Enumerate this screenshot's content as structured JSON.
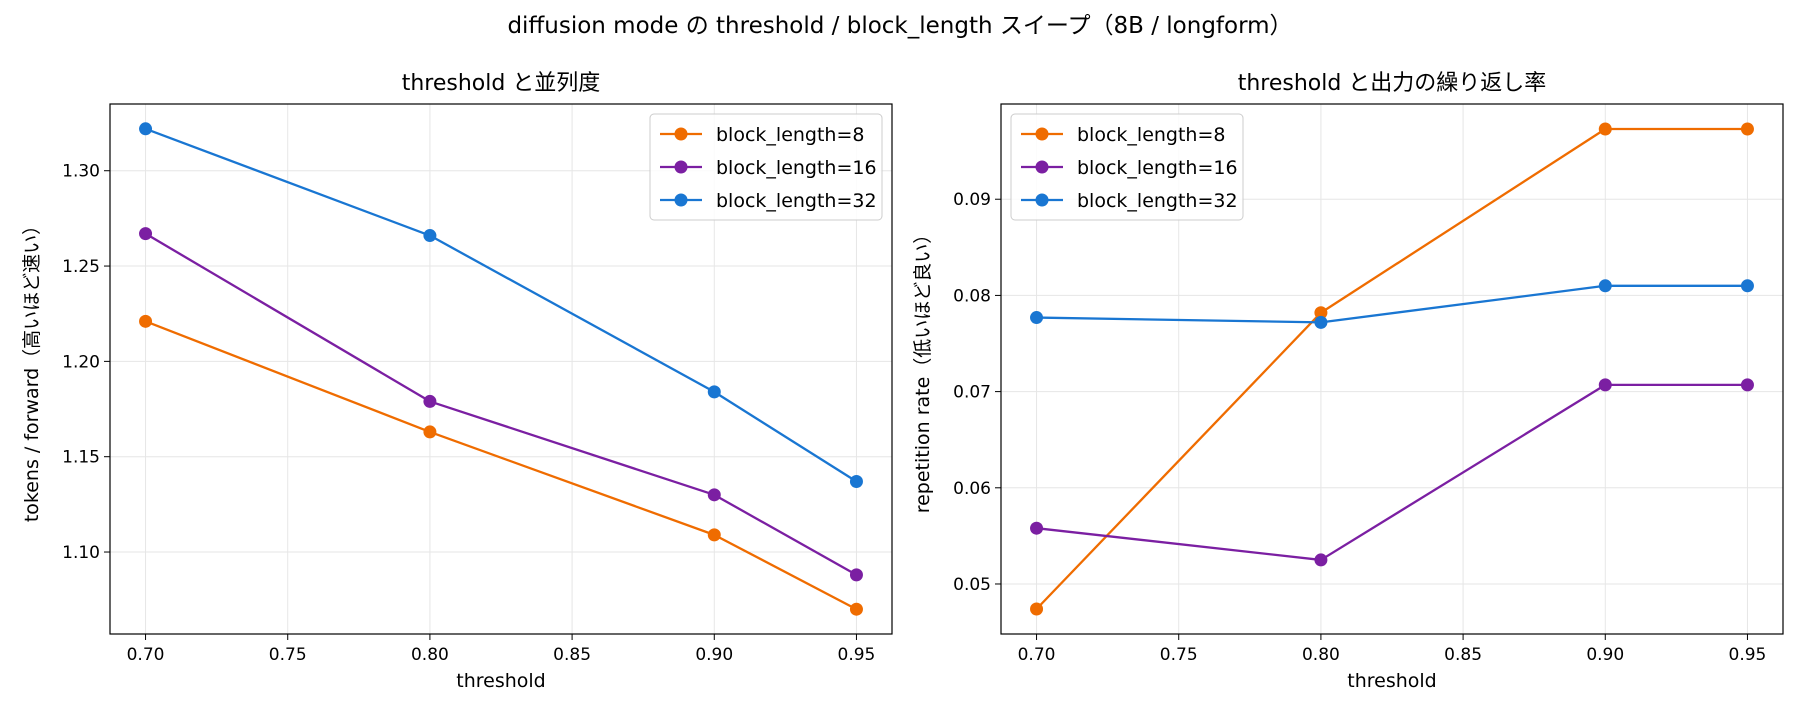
{
  "figure": {
    "suptitle": "diffusion mode の threshold / block_length スイープ（8B / longform）"
  },
  "chart_data": [
    {
      "type": "line",
      "title": "threshold と並列度",
      "xlabel": "threshold",
      "ylabel": "tokens / forward（高いほど速い）",
      "x": [
        0.7,
        0.8,
        0.9,
        0.95
      ],
      "xticks": [
        0.7,
        0.75,
        0.8,
        0.85,
        0.9,
        0.95
      ],
      "xtick_labels": [
        "0.70",
        "0.75",
        "0.80",
        "0.85",
        "0.90",
        "0.95"
      ],
      "xlim": [
        0.6875,
        0.9625
      ],
      "yticks": [
        1.1,
        1.15,
        1.2,
        1.25,
        1.3
      ],
      "ytick_labels": [
        "1.10",
        "1.15",
        "1.20",
        "1.25",
        "1.30"
      ],
      "ylim": [
        1.057,
        1.335
      ],
      "grid": true,
      "legend_position": "upper right",
      "series": [
        {
          "name": "block_length=8",
          "color": "#ef6c00",
          "values": [
            1.221,
            1.163,
            1.109,
            1.07
          ]
        },
        {
          "name": "block_length=16",
          "color": "#7b1fa2",
          "values": [
            1.267,
            1.179,
            1.13,
            1.088
          ]
        },
        {
          "name": "block_length=32",
          "color": "#1976d2",
          "values": [
            1.322,
            1.266,
            1.184,
            1.137
          ]
        }
      ]
    },
    {
      "type": "line",
      "title": "threshold と出力の繰り返し率",
      "xlabel": "threshold",
      "ylabel": "repetition rate（低いほど良い）",
      "x": [
        0.7,
        0.8,
        0.9,
        0.95
      ],
      "xticks": [
        0.7,
        0.75,
        0.8,
        0.85,
        0.9,
        0.95
      ],
      "xtick_labels": [
        "0.70",
        "0.75",
        "0.80",
        "0.85",
        "0.90",
        "0.95"
      ],
      "xlim": [
        0.6875,
        0.9625
      ],
      "yticks": [
        0.05,
        0.06,
        0.07,
        0.08,
        0.09
      ],
      "ytick_labels": [
        "0.05",
        "0.06",
        "0.07",
        "0.08",
        "0.09"
      ],
      "ylim": [
        0.0448,
        0.0999
      ],
      "grid": true,
      "legend_position": "upper left",
      "series": [
        {
          "name": "block_length=8",
          "color": "#ef6c00",
          "values": [
            0.0474,
            0.0782,
            0.0973,
            0.0973
          ]
        },
        {
          "name": "block_length=16",
          "color": "#7b1fa2",
          "values": [
            0.0558,
            0.0525,
            0.0707,
            0.0707
          ]
        },
        {
          "name": "block_length=32",
          "color": "#1976d2",
          "values": [
            0.0777,
            0.0772,
            0.081,
            0.081
          ]
        }
      ]
    }
  ]
}
